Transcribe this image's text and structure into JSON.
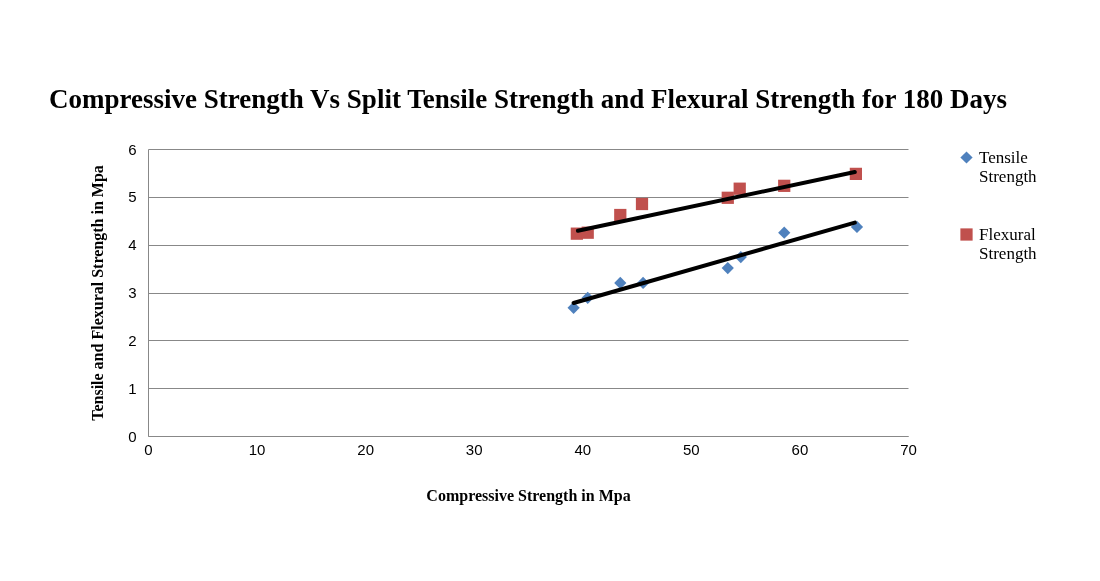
{
  "chart_data": {
    "type": "scatter",
    "title": "Compressive Strength Vs Split Tensile Strength and\nFlexural Strength for 180 Days",
    "xlabel": "Compressive Strength  in Mpa",
    "ylabel": "Tensile and Flexural Strength  in Mpa",
    "xlim": [
      0,
      70
    ],
    "xticks": [
      0,
      10,
      20,
      30,
      40,
      50,
      60,
      70
    ],
    "ylim": [
      0,
      6
    ],
    "yticks": [
      0,
      1,
      2,
      3,
      4,
      5,
      6
    ],
    "grid": "y",
    "legend": "right",
    "series": [
      {
        "name": "Tensile Strength",
        "color": "#4f81bd",
        "marker": "diamond",
        "x": [
          39.2,
          40.5,
          43.5,
          45.6,
          53.4,
          54.6,
          58.6,
          65.3
        ],
        "values": [
          2.68,
          2.89,
          3.2,
          3.2,
          3.51,
          3.74,
          4.25,
          4.37
        ]
      },
      {
        "name": "Flexural Strength",
        "color": "#c0504d",
        "marker": "square",
        "x": [
          39.5,
          40.5,
          43.5,
          45.5,
          53.4,
          54.5,
          58.6,
          65.2
        ],
        "values": [
          4.23,
          4.25,
          4.62,
          4.85,
          4.98,
          5.17,
          5.23,
          5.48
        ]
      },
      {
        "type": "line",
        "color": "#000000",
        "marker": "none",
        "x": [
          39.2,
          65.1
        ],
        "values": [
          2.78,
          4.46
        ]
      },
      {
        "type": "line",
        "color": "#000000",
        "marker": "none",
        "x": [
          39.6,
          65.1
        ],
        "values": [
          4.29,
          5.52
        ]
      }
    ]
  }
}
